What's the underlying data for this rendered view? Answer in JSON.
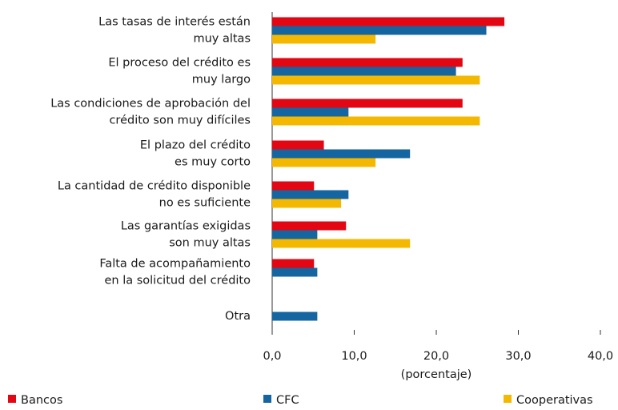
{
  "chart_data": {
    "type": "hbar",
    "categories": [
      "Las tasas de interés están\nmuy altas",
      "El proceso del crédito es\nmuy largo",
      "Las condiciones de aprobación del\ncrédito son muy difíciles",
      "El plazo del crédito\nes muy corto",
      "La cantidad de crédito disponible\nno es suficiente",
      "Las garantías exigidas\nson muy altas",
      "Falta de acompañamiento\nen la solicitud del crédito",
      "Otra"
    ],
    "series": [
      {
        "name": "Bancos",
        "color": "#e30613",
        "values": [
          28.3,
          23.2,
          23.2,
          6.3,
          5.1,
          9.0,
          5.1,
          null
        ]
      },
      {
        "name": "CFC",
        "color": "#1565a0",
        "values": [
          26.1,
          22.4,
          9.3,
          16.8,
          9.3,
          5.5,
          5.5,
          5.5
        ]
      },
      {
        "name": "Cooperativas",
        "color": "#f5b800",
        "values": [
          12.6,
          25.3,
          25.3,
          12.6,
          8.4,
          16.8,
          null,
          null
        ]
      }
    ],
    "xlabel": "(porcentaje)",
    "xlim": [
      0,
      40
    ],
    "xticks": [
      {
        "value": 0,
        "label": "0,0"
      },
      {
        "value": 10,
        "label": "10,0"
      },
      {
        "value": 20,
        "label": "20,0"
      },
      {
        "value": 30,
        "label": "30,0"
      },
      {
        "value": 40,
        "label": "40,0"
      }
    ],
    "legend": "bottom"
  }
}
